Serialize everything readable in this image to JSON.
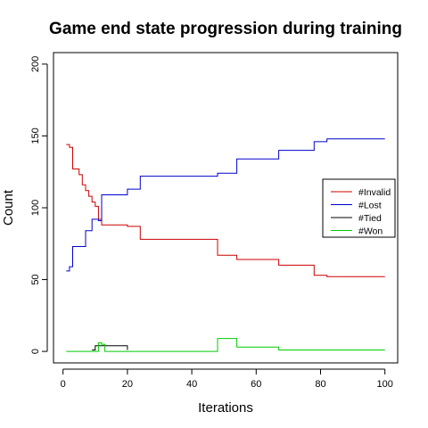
{
  "chart_data": {
    "type": "line",
    "title": "Game end state progression during training",
    "xlabel": "Iterations",
    "ylabel": "Count",
    "xlim": [
      1,
      100
    ],
    "ylim": [
      0,
      200
    ],
    "x_ticks": [
      0,
      20,
      40,
      60,
      80,
      100
    ],
    "y_ticks": [
      0,
      50,
      100,
      150,
      200
    ],
    "grid": false,
    "legend_position": "right",
    "series": [
      {
        "name": "#Invalid",
        "color": "#cc0000",
        "step": true,
        "x": [
          1,
          2,
          3,
          4,
          5,
          6,
          7,
          8,
          9,
          10,
          11,
          12,
          20,
          24,
          48,
          54,
          67,
          78,
          82,
          100
        ],
        "y": [
          144,
          142,
          127,
          127,
          123,
          116,
          112,
          108,
          104,
          101,
          92,
          88,
          87,
          78,
          67,
          64,
          60,
          53,
          52,
          52
        ]
      },
      {
        "name": "#Lost",
        "color": "#0000cc",
        "step": true,
        "x": [
          1,
          2,
          3,
          4,
          7,
          9,
          11,
          12,
          20,
          24,
          48,
          54,
          67,
          78,
          82,
          100
        ],
        "y": [
          56,
          59,
          73,
          73,
          84,
          92,
          91,
          109,
          113,
          122,
          124,
          134,
          140,
          146,
          148,
          148
        ]
      },
      {
        "name": "#Tied",
        "color": "#000000",
        "step": true,
        "x": [
          9,
          10,
          12,
          20
        ],
        "y": [
          1,
          4,
          4,
          1
        ]
      },
      {
        "name": "#Won",
        "color": "#00cc00",
        "step": true,
        "x": [
          1,
          11,
          12,
          13,
          48,
          54,
          67,
          100
        ],
        "y": [
          0,
          6,
          5,
          0,
          9,
          3,
          1,
          1
        ]
      }
    ]
  }
}
